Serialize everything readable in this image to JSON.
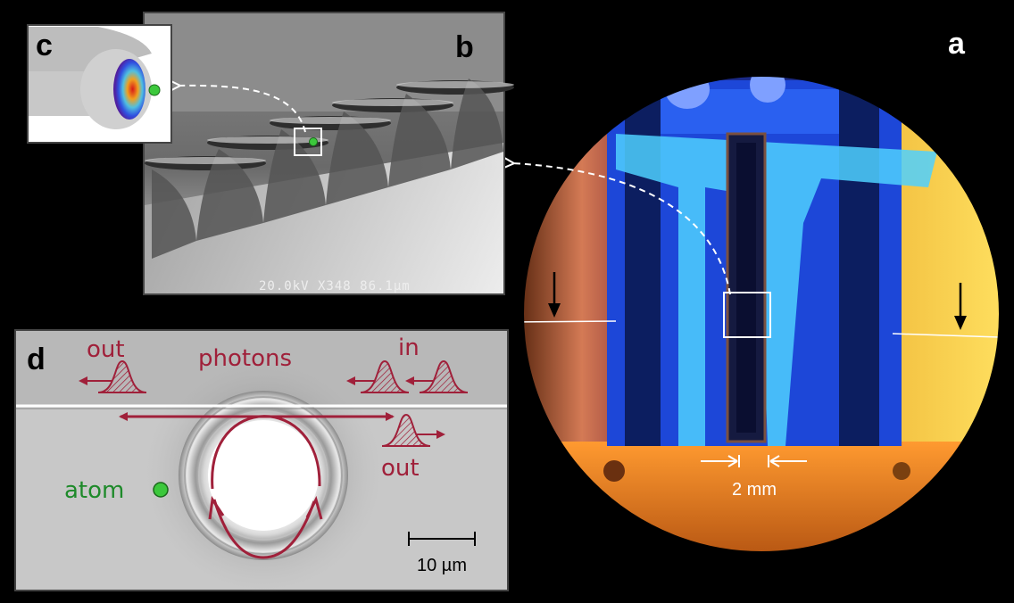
{
  "panels": {
    "a": {
      "letter": "a",
      "scale": "2 mm"
    },
    "b": {
      "letter": "b",
      "sem_info": "20.0kV   X348   86.1µm"
    },
    "c": {
      "letter": "c"
    },
    "d": {
      "letter": "d",
      "photons": "photons",
      "in": "in",
      "out_left": "out",
      "out_right": "out",
      "atom": "atom",
      "scale": "10 µm"
    }
  },
  "colors": {
    "photon_red": "#a0203a",
    "atom_green": "#3cc83c",
    "background": "#000000"
  }
}
